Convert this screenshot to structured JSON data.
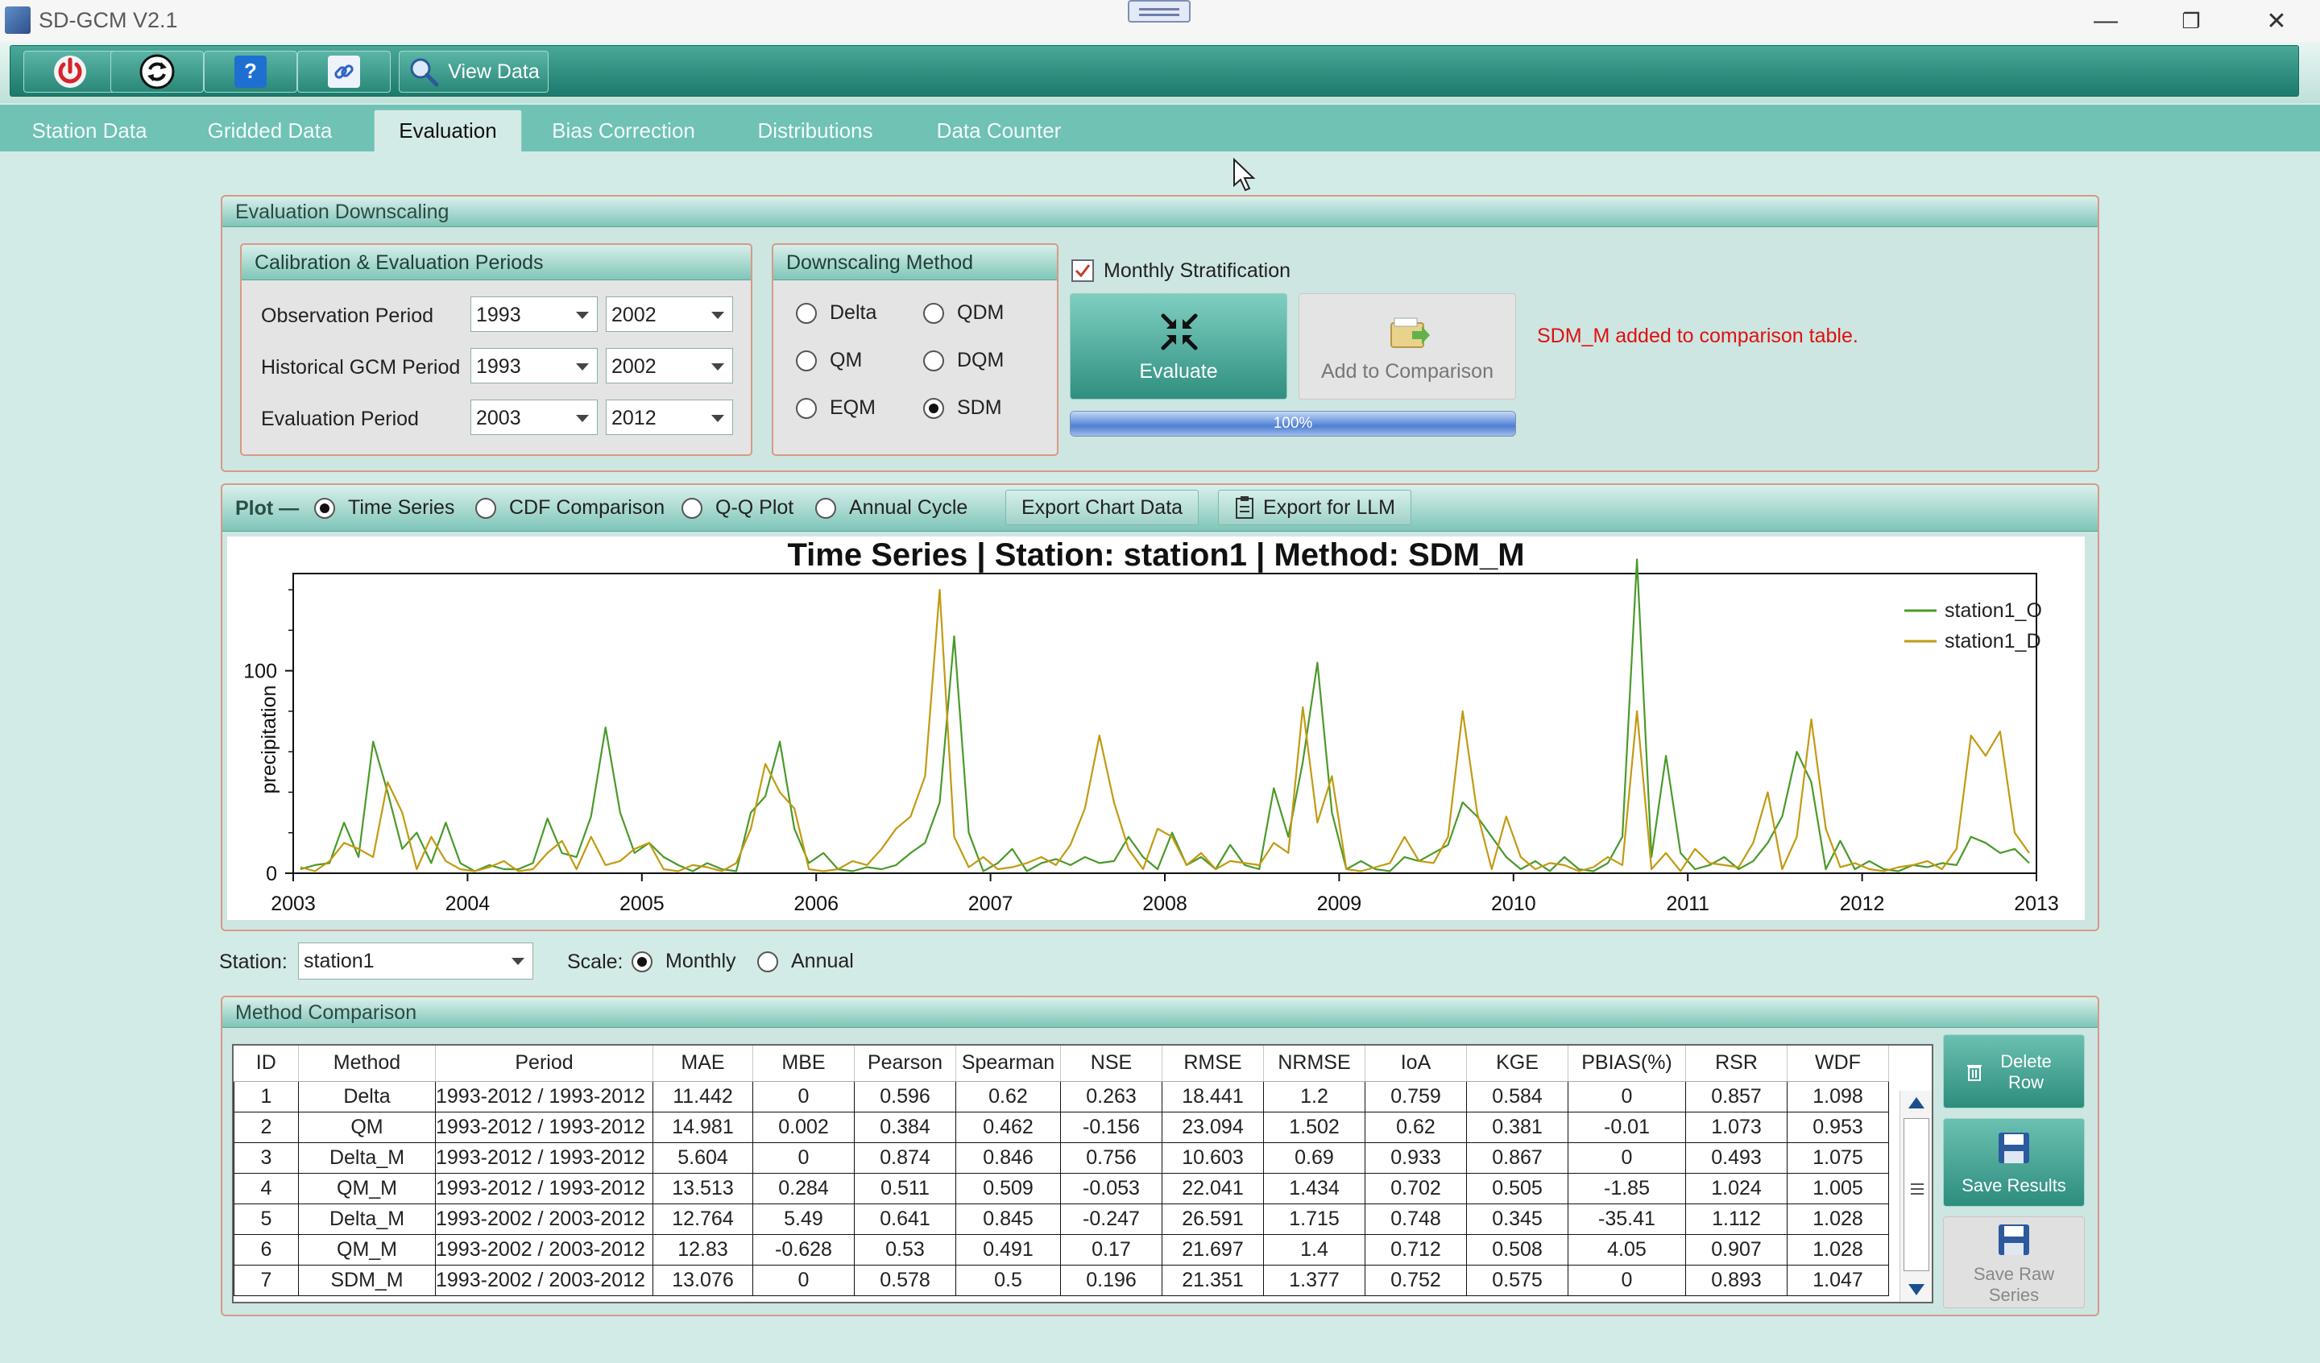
{
  "window": {
    "title": "SD-GCM V2.1"
  },
  "toolbar": {
    "view_data_label": "View Data"
  },
  "tabs": [
    "Station Data",
    "Gridded Data",
    "Evaluation",
    "Bias Correction",
    "Distributions",
    "Data Counter"
  ],
  "active_tab": "Evaluation",
  "evaluation": {
    "group_title": "Evaluation Downscaling",
    "periods": {
      "title": "Calibration & Evaluation Periods",
      "observation_label": "Observation Period",
      "observation_start": "1993",
      "observation_end": "2002",
      "historical_label": "Historical GCM Period",
      "historical_start": "1993",
      "historical_end": "2002",
      "evaluation_label": "Evaluation Period",
      "evaluation_start": "2003",
      "evaluation_end": "2012"
    },
    "method": {
      "title": "Downscaling Method",
      "options": [
        "Delta",
        "QDM",
        "QM",
        "DQM",
        "EQM",
        "SDM"
      ],
      "selected": "SDM"
    },
    "monthly_stratification_label": "Monthly Stratification",
    "monthly_stratification_checked": true,
    "evaluate_label": "Evaluate",
    "add_to_comparison_label": "Add to Comparison",
    "progress_text": "100%",
    "progress_value": 1.0,
    "status_message": "SDM_M added to comparison table."
  },
  "plot": {
    "label": "Plot —",
    "options": [
      "Time Series",
      "CDF Comparison",
      "Q-Q Plot",
      "Annual Cycle"
    ],
    "selected": "Time Series",
    "export_chart_label": "Export Chart Data",
    "export_llm_label": "Export for LLM"
  },
  "chart_data": {
    "type": "line",
    "title": "Time Series | Station: station1 | Method: SDM_M",
    "xlabel": "",
    "ylabel": "precipitation",
    "xlim": [
      2003,
      2013
    ],
    "ylim": [
      0,
      148
    ],
    "xticks": [
      "2003",
      "2004",
      "2005",
      "2006",
      "2007",
      "2008",
      "2009",
      "2010",
      "2011",
      "2012",
      "2013"
    ],
    "yticks": [
      "0",
      "100"
    ],
    "legend_position": "top-right",
    "start_year": 2003,
    "series": [
      {
        "name": "station1_O",
        "color": "#4a9a2a",
        "values": [
          2,
          4,
          5,
          25,
          8,
          65,
          40,
          12,
          20,
          5,
          25,
          5,
          1,
          4,
          2,
          2,
          5,
          27,
          10,
          8,
          28,
          72,
          30,
          10,
          15,
          8,
          4,
          1,
          5,
          2,
          1,
          30,
          38,
          65,
          22,
          5,
          10,
          2,
          1,
          3,
          2,
          4,
          10,
          15,
          35,
          117,
          20,
          1,
          5,
          12,
          1,
          5,
          7,
          4,
          8,
          5,
          6,
          18,
          8,
          2,
          20,
          4,
          8,
          2,
          14,
          4,
          2,
          42,
          18,
          55,
          104,
          30,
          2,
          6,
          2,
          1,
          8,
          6,
          10,
          14,
          35,
          28,
          18,
          8,
          2,
          6,
          1,
          8,
          2,
          1,
          5,
          18,
          155,
          8,
          58,
          10,
          2,
          4,
          8,
          2,
          6,
          15,
          28,
          60,
          45,
          2,
          16,
          2,
          6,
          2,
          1,
          4,
          3,
          5,
          4,
          18,
          15,
          10,
          12,
          5
        ]
      },
      {
        "name": "station1_D",
        "color": "#c29a12",
        "values": [
          3,
          1,
          6,
          15,
          12,
          8,
          45,
          30,
          2,
          18,
          6,
          2,
          1,
          3,
          6,
          1,
          2,
          10,
          16,
          2,
          18,
          4,
          6,
          12,
          15,
          2,
          1,
          4,
          3,
          1,
          5,
          22,
          54,
          40,
          32,
          2,
          1,
          2,
          6,
          4,
          12,
          22,
          28,
          48,
          140,
          18,
          3,
          8,
          2,
          3,
          5,
          8,
          4,
          14,
          32,
          68,
          35,
          12,
          2,
          22,
          18,
          4,
          10,
          2,
          6,
          5,
          4,
          15,
          10,
          82,
          25,
          48,
          2,
          1,
          3,
          5,
          18,
          6,
          5,
          18,
          80,
          30,
          2,
          28,
          8,
          2,
          5,
          4,
          1,
          3,
          8,
          4,
          80,
          2,
          10,
          1,
          12,
          5,
          4,
          3,
          15,
          40,
          2,
          18,
          76,
          22,
          3,
          5,
          2,
          1,
          3,
          4,
          6,
          2,
          12,
          68,
          58,
          70,
          20,
          10
        ]
      }
    ]
  },
  "controls": {
    "station_label": "Station:",
    "station_value": "station1",
    "scale_label": "Scale:",
    "scale_options": [
      "Monthly",
      "Annual"
    ],
    "scale_selected": "Monthly"
  },
  "comparison": {
    "title": "Method Comparison",
    "headers": [
      "ID",
      "Method",
      "Period",
      "MAE",
      "MBE",
      "Pearson",
      "Spearman",
      "NSE",
      "RMSE",
      "NRMSE",
      "IoA",
      "KGE",
      "PBIAS(%)",
      "RSR",
      "WDF"
    ],
    "rows": [
      [
        "1",
        "Delta",
        "1993-2012 / 1993-2012",
        "11.442",
        "0",
        "0.596",
        "0.62",
        "0.263",
        "18.441",
        "1.2",
        "0.759",
        "0.584",
        "0",
        "0.857",
        "1.098"
      ],
      [
        "2",
        "QM",
        "1993-2012 / 1993-2012",
        "14.981",
        "0.002",
        "0.384",
        "0.462",
        "-0.156",
        "23.094",
        "1.502",
        "0.62",
        "0.381",
        "-0.01",
        "1.073",
        "0.953"
      ],
      [
        "3",
        "Delta_M",
        "1993-2012 / 1993-2012",
        "5.604",
        "0",
        "0.874",
        "0.846",
        "0.756",
        "10.603",
        "0.69",
        "0.933",
        "0.867",
        "0",
        "0.493",
        "1.075"
      ],
      [
        "4",
        "QM_M",
        "1993-2012 / 1993-2012",
        "13.513",
        "0.284",
        "0.511",
        "0.509",
        "-0.053",
        "22.041",
        "1.434",
        "0.702",
        "0.505",
        "-1.85",
        "1.024",
        "1.005"
      ],
      [
        "5",
        "Delta_M",
        "1993-2002 / 2003-2012",
        "12.764",
        "5.49",
        "0.641",
        "0.845",
        "-0.247",
        "26.591",
        "1.715",
        "0.748",
        "0.345",
        "-35.41",
        "1.112",
        "1.028"
      ],
      [
        "6",
        "QM_M",
        "1993-2002 / 2003-2012",
        "12.83",
        "-0.628",
        "0.53",
        "0.491",
        "0.17",
        "21.697",
        "1.4",
        "0.712",
        "0.508",
        "4.05",
        "0.907",
        "1.028"
      ],
      [
        "7",
        "SDM_M",
        "1993-2002 / 2003-2012",
        "13.076",
        "0",
        "0.578",
        "0.5",
        "0.196",
        "21.351",
        "1.377",
        "0.752",
        "0.575",
        "0",
        "0.893",
        "1.047"
      ]
    ],
    "delete_row_label": "Delete Row",
    "save_results_label": "Save Results",
    "save_raw_series_label": "Save Raw Series"
  }
}
